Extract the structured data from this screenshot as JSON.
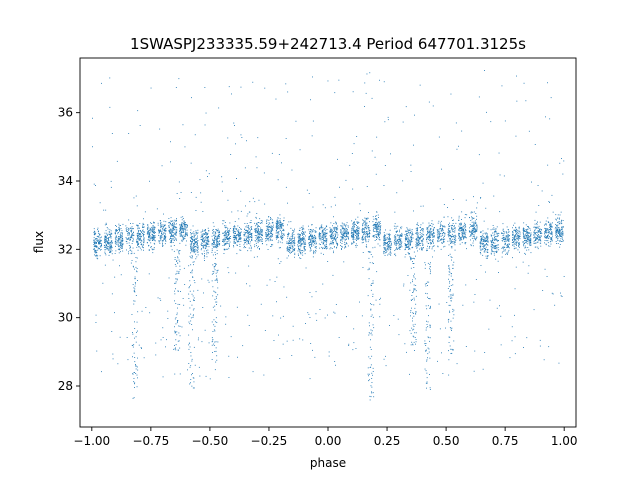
{
  "chart_data": {
    "type": "scatter",
    "title": "1SWASPJ233335.59+242713.4 Period 647701.3125s",
    "xlabel": "phase",
    "ylabel": "flux",
    "xlim": [
      -1.05,
      1.05
    ],
    "ylim": [
      26.8,
      37.6
    ],
    "x_ticks": [
      {
        "value": -1.0,
        "label": "−1.00"
      },
      {
        "value": -0.75,
        "label": "−0.75"
      },
      {
        "value": -0.5,
        "label": "−0.50"
      },
      {
        "value": -0.25,
        "label": "−0.25"
      },
      {
        "value": 0.0,
        "label": "0.00"
      },
      {
        "value": 0.25,
        "label": "0.25"
      },
      {
        "value": 0.5,
        "label": "0.50"
      },
      {
        "value": 0.75,
        "label": "0.75"
      },
      {
        "value": 1.0,
        "label": "1.00"
      }
    ],
    "y_ticks": [
      {
        "value": 28,
        "label": "28"
      },
      {
        "value": 30,
        "label": "30"
      },
      {
        "value": 32,
        "label": "32"
      },
      {
        "value": 34,
        "label": "34"
      },
      {
        "value": 36,
        "label": "36"
      }
    ],
    "grid": false,
    "marker_color": "#1f77b4",
    "series": [
      {
        "baseline_flux": 32.4,
        "phase_range": [
          -1.0,
          1.0
        ],
        "approx_points": 5000,
        "dip_columns": [
          {
            "phase": -0.82,
            "min_flux": 27.6
          },
          {
            "phase": -0.64,
            "min_flux": 29.0
          },
          {
            "phase": -0.58,
            "min_flux": 27.9
          },
          {
            "phase": -0.48,
            "min_flux": 28.7
          },
          {
            "phase": 0.18,
            "min_flux": 27.6
          },
          {
            "phase": 0.36,
            "min_flux": 29.0
          },
          {
            "phase": 0.42,
            "min_flux": 27.9
          },
          {
            "phase": 0.52,
            "min_flux": 28.7
          }
        ],
        "outlier_max_flux": 37.3
      }
    ]
  }
}
